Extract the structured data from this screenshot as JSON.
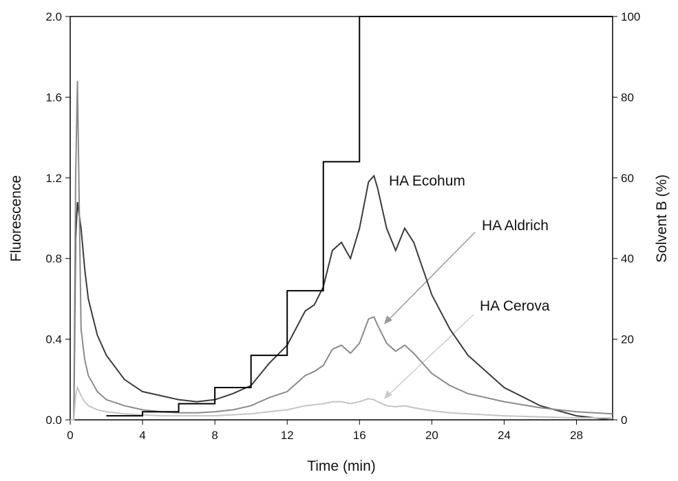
{
  "chart_data": {
    "type": "line",
    "x_label": "Time (min)",
    "y_label": "Fluorescence",
    "y2_label": "Solvent B (%)",
    "xlim": [
      0,
      30
    ],
    "xticks": [
      0,
      4,
      8,
      12,
      16,
      20,
      24,
      28
    ],
    "ylim": [
      0,
      2
    ],
    "yticks": [
      {
        "value": 0,
        "label": "0.0"
      },
      0.4,
      0.8,
      1.2,
      1.6,
      {
        "value": 2,
        "label": "2.0"
      }
    ],
    "y2lim": [
      0,
      100
    ],
    "y2ticks": [
      0,
      20,
      40,
      60,
      80,
      100
    ],
    "x": [
      0,
      0.2,
      0.3,
      0.4,
      0.6,
      0.8,
      1,
      1.5,
      2,
      3,
      4,
      5,
      6,
      7,
      8,
      9,
      10,
      11,
      12,
      13,
      13.5,
      14,
      14.5,
      15,
      15.5,
      16,
      16.5,
      16.8,
      17,
      17.5,
      18,
      18.5,
      19,
      20,
      21,
      22,
      24,
      26,
      28,
      30
    ],
    "series": [
      {
        "name": "HA Ecohum",
        "color": "#3a3a3a",
        "values": [
          0,
          0,
          0.9,
          1.08,
          0.95,
          0.75,
          0.6,
          0.42,
          0.32,
          0.2,
          0.14,
          0.12,
          0.1,
          0.09,
          0.1,
          0.13,
          0.17,
          0.28,
          0.37,
          0.54,
          0.57,
          0.66,
          0.84,
          0.88,
          0.8,
          0.95,
          1.18,
          1.21,
          1.15,
          0.95,
          0.84,
          0.95,
          0.88,
          0.62,
          0.45,
          0.32,
          0.16,
          0.07,
          0.02,
          0.0
        ]
      },
      {
        "name": "HA Aldrich",
        "color": "#8a8a8a",
        "values": [
          0,
          0,
          1.2,
          1.68,
          0.45,
          0.3,
          0.22,
          0.14,
          0.1,
          0.07,
          0.05,
          0.04,
          0.035,
          0.035,
          0.04,
          0.05,
          0.07,
          0.11,
          0.14,
          0.22,
          0.24,
          0.27,
          0.35,
          0.37,
          0.33,
          0.38,
          0.5,
          0.51,
          0.47,
          0.38,
          0.34,
          0.37,
          0.33,
          0.23,
          0.17,
          0.13,
          0.09,
          0.06,
          0.04,
          0.03
        ]
      },
      {
        "name": "HA Cerova",
        "color": "#c4c4c4",
        "values": [
          0,
          0,
          0.12,
          0.16,
          0.12,
          0.09,
          0.07,
          0.05,
          0.04,
          0.03,
          0.025,
          0.02,
          0.02,
          0.02,
          0.02,
          0.025,
          0.03,
          0.04,
          0.05,
          0.07,
          0.075,
          0.08,
          0.09,
          0.09,
          0.08,
          0.09,
          0.105,
          0.1,
          0.09,
          0.07,
          0.065,
          0.07,
          0.06,
          0.045,
          0.035,
          0.03,
          0.02,
          0.015,
          0.01,
          0.01
        ]
      },
      {
        "color": "#000000",
        "axis": "y2",
        "x": [
          2,
          4,
          4,
          6,
          6,
          8,
          8,
          10,
          10,
          12,
          12,
          14,
          14,
          16,
          16,
          30
        ],
        "values": [
          1,
          1,
          2,
          2,
          4,
          4,
          8,
          8,
          16,
          16,
          32,
          32,
          64,
          64,
          100,
          100
        ]
      }
    ]
  }
}
